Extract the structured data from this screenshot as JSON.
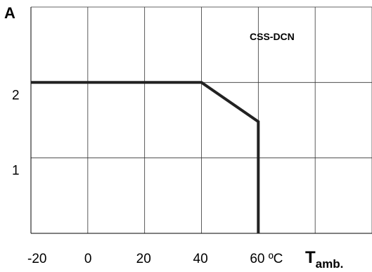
{
  "chart_data": {
    "type": "line",
    "ylabel": "A",
    "xlabel_main": "T",
    "xlabel_sub": "amb.",
    "annotation": "CSS-DCN",
    "x_ticks": [
      "-20",
      "0",
      "20",
      "40",
      "60 ºC"
    ],
    "x_tick_values": [
      -20,
      0,
      20,
      40,
      60
    ],
    "y_ticks": [
      "1",
      "2"
    ],
    "y_tick_values": [
      1,
      2
    ],
    "xlim": [
      -20,
      100
    ],
    "ylim": [
      0,
      3
    ],
    "grid": true,
    "series": [
      {
        "x": [
          -20,
          40,
          60,
          60
        ],
        "y": [
          2.0,
          2.0,
          1.48,
          0
        ]
      }
    ]
  }
}
